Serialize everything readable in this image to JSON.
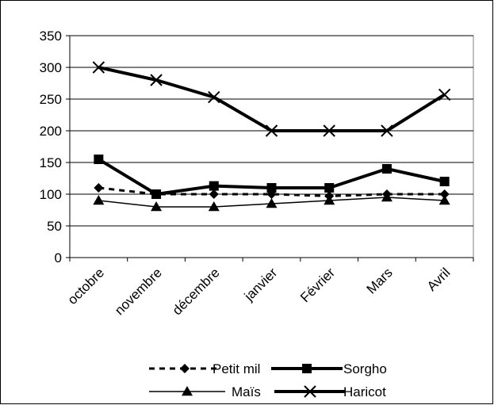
{
  "chart_data": {
    "type": "line",
    "categories": [
      "octobre",
      "novembre",
      "décembre",
      "janvier",
      "Février",
      "Mars",
      "Avril"
    ],
    "ylim": [
      0,
      350
    ],
    "yticks": [
      0,
      50,
      100,
      150,
      200,
      250,
      300,
      350
    ],
    "grid": true,
    "legend_position": "bottom",
    "series": [
      {
        "name": "Petit mil",
        "values": [
          110,
          100,
          100,
          100,
          97,
          100,
          100
        ],
        "color": "#000000",
        "line": "dashed",
        "marker": "diamond"
      },
      {
        "name": "Sorgho",
        "values": [
          155,
          100,
          113,
          110,
          110,
          140,
          120
        ],
        "color": "#000000",
        "line": "thick",
        "marker": "square"
      },
      {
        "name": "Maïs",
        "values": [
          90,
          80,
          80,
          85,
          90,
          95,
          90
        ],
        "color": "#000000",
        "line": "thin",
        "marker": "triangle"
      },
      {
        "name": "Haricot",
        "values": [
          300,
          280,
          253,
          200,
          200,
          200,
          257
        ],
        "color": "#000000",
        "line": "thick",
        "marker": "x"
      }
    ]
  }
}
